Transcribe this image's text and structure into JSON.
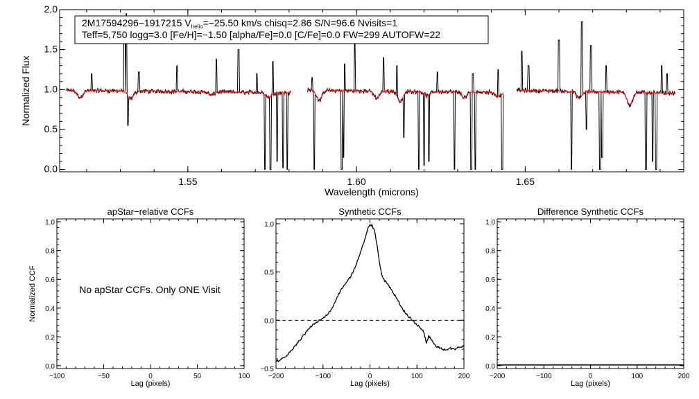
{
  "chart_data": [
    {
      "type": "line",
      "panel": "spectrum",
      "title": "",
      "xlabel": "Wavelength (microns)",
      "ylabel": "Normalized Flux",
      "xlim": [
        1.512,
        1.697
      ],
      "ylim": [
        -0.03,
        2.0
      ],
      "xticks": [
        1.55,
        1.6,
        1.65
      ],
      "xtick_labels": [
        "1.55",
        "1.60",
        "1.65"
      ],
      "yticks": [
        0.0,
        0.5,
        1.0,
        1.5,
        2.0
      ],
      "ytick_labels": [
        "0.0",
        "0.5",
        "1.0",
        "1.5",
        "2.0"
      ],
      "info_box": {
        "line1_pre": "2M17594296−1917215  V",
        "line1_sub": "helio",
        "line1_post": "=−25.50 km/s  chisq=2.86  S/N=96.6  Nvisits=1",
        "line2": "Teff=5,750 logg=3.0 [Fe/H]=−1.50 [alpha/Fe]=0.0 [C/Fe]=0.0 FW=299 AUTOFW=22"
      },
      "series": [
        {
          "name": "observed",
          "color": "#000000"
        },
        {
          "name": "model",
          "color": "#ff0000"
        }
      ],
      "detector_chips": [
        [
          1.514,
          1.5805
        ],
        [
          1.5855,
          1.6435
        ],
        [
          1.6475,
          1.6945
        ]
      ],
      "chip_slopes": [
        -0.06,
        -0.05,
        -0.07
      ],
      "continuum": 1.0,
      "emission_spikes": [
        [
          1.5215,
          1.2
        ],
        [
          1.5312,
          1.72
        ],
        [
          1.5318,
          1.95
        ],
        [
          1.5355,
          1.22
        ],
        [
          1.5468,
          1.3
        ],
        [
          1.5585,
          1.38
        ],
        [
          1.565,
          1.5
        ],
        [
          1.5705,
          1.2
        ],
        [
          1.5752,
          1.35
        ],
        [
          1.5868,
          1.15
        ],
        [
          1.5965,
          1.32
        ],
        [
          1.5995,
          1.6
        ],
        [
          1.608,
          1.4
        ],
        [
          1.612,
          1.3
        ],
        [
          1.624,
          1.22
        ],
        [
          1.6345,
          1.2
        ],
        [
          1.642,
          1.25
        ],
        [
          1.649,
          1.48
        ],
        [
          1.651,
          1.3
        ],
        [
          1.66,
          1.62
        ],
        [
          1.6668,
          1.85
        ],
        [
          1.6695,
          1.55
        ],
        [
          1.674,
          1.3
        ],
        [
          1.6858,
          1.28
        ],
        [
          1.6905,
          1.3
        ],
        [
          1.692,
          1.2
        ]
      ],
      "absorption_spikes": [
        [
          1.5322,
          0.55
        ],
        [
          1.5728,
          0.0
        ],
        [
          1.5745,
          0.0
        ],
        [
          1.5765,
          0.1
        ],
        [
          1.5782,
          0.02
        ],
        [
          1.5795,
          0.0
        ],
        [
          1.5875,
          0.0
        ],
        [
          1.5956,
          0.0
        ],
        [
          1.5962,
          0.15
        ],
        [
          1.614,
          0.4
        ],
        [
          1.6185,
          0.0
        ],
        [
          1.62,
          0.05
        ],
        [
          1.6215,
          0.1
        ],
        [
          1.629,
          0.0
        ],
        [
          1.634,
          0.0
        ],
        [
          1.6352,
          0.0
        ],
        [
          1.6432,
          0.0
        ],
        [
          1.6637,
          0.0
        ],
        [
          1.6682,
          0.5
        ],
        [
          1.6722,
          0.0
        ],
        [
          1.6728,
          0.15
        ],
        [
          1.6858,
          0.0
        ],
        [
          1.6878,
          0.1
        ],
        [
          1.6888,
          0.0
        ]
      ],
      "model_absorption_features": [
        [
          1.518,
          0.9
        ],
        [
          1.533,
          0.88
        ],
        [
          1.557,
          0.93
        ],
        [
          1.574,
          0.9
        ],
        [
          1.589,
          0.87
        ],
        [
          1.606,
          0.89
        ],
        [
          1.613,
          0.85
        ],
        [
          1.621,
          0.92
        ],
        [
          1.632,
          0.9
        ],
        [
          1.642,
          0.91
        ],
        [
          1.666,
          0.89
        ],
        [
          1.681,
          0.81
        ]
      ]
    },
    {
      "type": "line",
      "panel": "apstar-ccf",
      "title": "apStar−relative CCFs",
      "xlabel": "Lag (pixels)",
      "ylabel": "Normalized CCF",
      "xlim": [
        -100,
        100
      ],
      "ylim": [
        -0.02,
        1.02
      ],
      "xticks": [
        -100,
        -50,
        0,
        50,
        100
      ],
      "xtick_labels": [
        "−100",
        "−50",
        "0",
        "50",
        "100"
      ],
      "yticks": [
        0.0,
        0.2,
        0.4,
        0.6,
        0.8,
        1.0
      ],
      "ytick_labels": [
        "0.0",
        "0.2",
        "0.4",
        "0.6",
        "0.8",
        "1.0"
      ],
      "annotation": "No apStar CCFs.  Only ONE Visit",
      "series": []
    },
    {
      "type": "line",
      "panel": "synthetic-ccf",
      "title": "Synthetic CCFs",
      "xlabel": "Lag (pixels)",
      "ylabel": "",
      "xlim": [
        -200,
        200
      ],
      "ylim": [
        -0.5,
        1.05
      ],
      "xticks": [
        -200,
        -100,
        0,
        100,
        200
      ],
      "xtick_labels": [
        "−200",
        "−100",
        "0",
        "100",
        "200"
      ],
      "yticks": [
        -0.5,
        0.0,
        0.5,
        1.0
      ],
      "ytick_labels": [
        "−0.5",
        "0.0",
        "0.5",
        "1.0"
      ],
      "reference_line": {
        "y": 0.0,
        "style": "dashed"
      },
      "series": [
        {
          "name": "synthetic CCF",
          "color": "#000000",
          "x": [
            -200,
            -190,
            -180,
            -170,
            -160,
            -150,
            -140,
            -130,
            -120,
            -110,
            -100,
            -90,
            -80,
            -70,
            -60,
            -50,
            -40,
            -30,
            -20,
            -10,
            -5,
            0,
            5,
            10,
            15,
            20,
            25,
            30,
            40,
            50,
            60,
            70,
            80,
            90,
            100,
            110,
            115,
            120,
            125,
            130,
            140,
            150,
            160,
            170,
            180,
            190,
            200
          ],
          "y": [
            -0.43,
            -0.41,
            -0.38,
            -0.33,
            -0.27,
            -0.21,
            -0.15,
            -0.09,
            -0.04,
            -0.01,
            0.02,
            0.06,
            0.13,
            0.24,
            0.33,
            0.39,
            0.46,
            0.57,
            0.71,
            0.85,
            0.94,
            0.99,
            0.98,
            0.92,
            0.78,
            0.6,
            0.47,
            0.42,
            0.36,
            0.28,
            0.2,
            0.11,
            0.05,
            0.0,
            -0.05,
            -0.09,
            -0.13,
            -0.24,
            -0.16,
            -0.2,
            -0.27,
            -0.29,
            -0.31,
            -0.29,
            -0.3,
            -0.28,
            -0.27
          ]
        }
      ]
    },
    {
      "type": "line",
      "panel": "difference-ccf",
      "title": "Difference Synthetic CCFs",
      "xlabel": "Lag (pixels)",
      "ylabel": "",
      "xlim": [
        -200,
        200
      ],
      "ylim": [
        -0.02,
        1.02
      ],
      "xticks": [
        -200,
        -100,
        0,
        100,
        200
      ],
      "xtick_labels": [
        "−200",
        "−100",
        "0",
        "100",
        "200"
      ],
      "yticks": [
        0.0,
        0.2,
        0.4,
        0.6,
        0.8,
        1.0
      ],
      "ytick_labels": [
        "0.0",
        "0.2",
        "0.4",
        "0.6",
        "0.8",
        "1.0"
      ],
      "series": [
        {
          "name": "difference",
          "color": "#000000",
          "x": [
            -200,
            200
          ],
          "y": [
            0.0,
            0.0
          ]
        }
      ]
    }
  ]
}
